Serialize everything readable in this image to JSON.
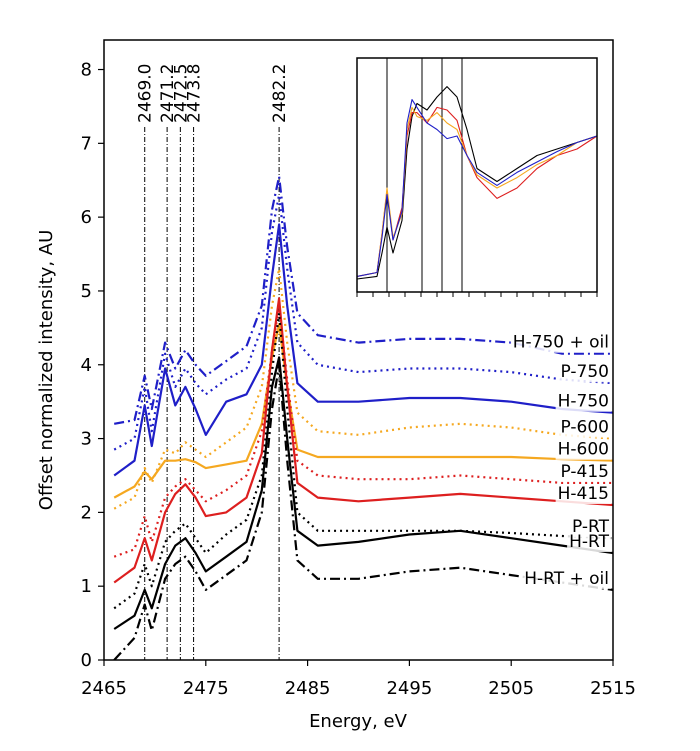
{
  "chart_data": {
    "type": "line",
    "xlabel": "Energy, eV",
    "ylabel": "Offset normalized intensity, AU",
    "xlim": [
      2465,
      2515
    ],
    "ylim": [
      0,
      8.4
    ],
    "xticks": [
      "2465",
      "2475",
      "2485",
      "2495",
      "2505",
      "2515"
    ],
    "yticks": [
      "0",
      "1",
      "2",
      "3",
      "4",
      "5",
      "6",
      "7",
      "8"
    ],
    "vlines": [
      {
        "x": 2469.0,
        "label": "2469.0"
      },
      {
        "x": 2471.2,
        "label": "2471.2"
      },
      {
        "x": 2472.5,
        "label": "2472.5"
      },
      {
        "x": 2473.8,
        "label": "2473.8"
      },
      {
        "x": 2482.2,
        "label": "2482.2"
      }
    ],
    "series": [
      {
        "name": "H-750 + oil",
        "color": "#1f1fc8",
        "dash": "dashdot",
        "x": [
          2466,
          2468,
          2469,
          2469.7,
          2471,
          2472,
          2473,
          2474,
          2475,
          2477,
          2479,
          2480.5,
          2481.5,
          2482.2,
          2483,
          2484,
          2486,
          2490,
          2495,
          2500,
          2505,
          2510,
          2515
        ],
        "y": [
          3.2,
          3.25,
          3.85,
          3.4,
          4.3,
          3.95,
          4.2,
          4.0,
          3.85,
          4.05,
          4.25,
          4.8,
          6.1,
          6.55,
          5.6,
          4.7,
          4.4,
          4.3,
          4.35,
          4.35,
          4.3,
          4.15,
          4.15
        ]
      },
      {
        "name": "P-750",
        "color": "#1f1fc8",
        "dash": "dotted",
        "x": [
          2466,
          2468,
          2469,
          2469.7,
          2471,
          2472,
          2473,
          2474,
          2475,
          2477,
          2479,
          2480.5,
          2481.5,
          2482.2,
          2483,
          2484,
          2486,
          2490,
          2495,
          2500,
          2505,
          2510,
          2515
        ],
        "y": [
          2.85,
          3.0,
          3.7,
          3.1,
          4.15,
          3.7,
          3.95,
          3.75,
          3.6,
          3.8,
          3.95,
          4.5,
          5.8,
          6.3,
          5.3,
          4.3,
          4.0,
          3.9,
          3.95,
          3.95,
          3.9,
          3.8,
          3.75
        ]
      },
      {
        "name": "H-750",
        "color": "#1f1fc8",
        "dash": "solid",
        "x": [
          2466,
          2468,
          2469,
          2469.7,
          2471,
          2472,
          2473,
          2474,
          2475,
          2477,
          2479,
          2480.5,
          2481.5,
          2482.2,
          2483,
          2484,
          2486,
          2490,
          2495,
          2500,
          2505,
          2510,
          2515
        ],
        "y": [
          2.5,
          2.7,
          3.45,
          2.9,
          3.95,
          3.45,
          3.7,
          3.4,
          3.05,
          3.5,
          3.6,
          4.0,
          5.2,
          5.9,
          4.8,
          3.75,
          3.5,
          3.5,
          3.55,
          3.55,
          3.5,
          3.4,
          3.35
        ]
      },
      {
        "name": "P-600",
        "color": "#f5a820",
        "dash": "dotted",
        "x": [
          2466,
          2468,
          2469,
          2469.7,
          2471,
          2472,
          2473,
          2474,
          2475,
          2477,
          2479,
          2480.5,
          2481.5,
          2482.2,
          2483,
          2484,
          2486,
          2490,
          2495,
          2500,
          2505,
          2510,
          2515
        ],
        "y": [
          2.05,
          2.2,
          2.6,
          2.4,
          2.85,
          2.8,
          2.95,
          2.85,
          2.75,
          2.95,
          3.15,
          3.7,
          4.8,
          5.3,
          4.3,
          3.35,
          3.1,
          3.05,
          3.15,
          3.2,
          3.15,
          3.05,
          3.0
        ]
      },
      {
        "name": "H-600",
        "color": "#f5a820",
        "dash": "solid",
        "x": [
          2466,
          2468,
          2469,
          2469.7,
          2471,
          2472,
          2473,
          2474,
          2475,
          2477,
          2479,
          2480.5,
          2481.5,
          2482.2,
          2483,
          2484,
          2486,
          2490,
          2495,
          2500,
          2505,
          2510,
          2515
        ],
        "y": [
          2.2,
          2.35,
          2.55,
          2.45,
          2.7,
          2.7,
          2.72,
          2.68,
          2.6,
          2.65,
          2.7,
          3.2,
          4.1,
          4.55,
          3.7,
          2.85,
          2.75,
          2.75,
          2.75,
          2.75,
          2.75,
          2.72,
          2.7
        ]
      },
      {
        "name": "P-415",
        "color": "#dd1f1f",
        "dash": "dotted",
        "x": [
          2466,
          2468,
          2469,
          2469.7,
          2471,
          2472,
          2473,
          2474,
          2475,
          2477,
          2479,
          2480.5,
          2481.5,
          2482.2,
          2483,
          2484,
          2486,
          2490,
          2495,
          2500,
          2505,
          2510,
          2515
        ],
        "y": [
          1.4,
          1.5,
          1.95,
          1.6,
          2.2,
          2.35,
          2.45,
          2.3,
          2.15,
          2.3,
          2.5,
          3.1,
          4.2,
          4.8,
          3.8,
          2.7,
          2.5,
          2.45,
          2.45,
          2.5,
          2.45,
          2.4,
          2.4
        ]
      },
      {
        "name": "H-415",
        "color": "#dd1f1f",
        "dash": "solid",
        "x": [
          2466,
          2468,
          2469,
          2469.7,
          2471,
          2472,
          2473,
          2474,
          2475,
          2477,
          2479,
          2480.5,
          2481.5,
          2482.2,
          2483,
          2484,
          2486,
          2490,
          2495,
          2500,
          2505,
          2510,
          2515
        ],
        "y": [
          1.05,
          1.25,
          1.65,
          1.35,
          2.0,
          2.25,
          2.38,
          2.2,
          1.95,
          2.0,
          2.2,
          2.8,
          4.2,
          4.9,
          3.7,
          2.4,
          2.2,
          2.15,
          2.2,
          2.25,
          2.2,
          2.15,
          2.1
        ]
      },
      {
        "name": "P-RT",
        "color": "#000000",
        "dash": "dotted",
        "x": [
          2466,
          2468,
          2469,
          2469.7,
          2471,
          2472,
          2473,
          2474,
          2475,
          2477,
          2479,
          2480.5,
          2481.5,
          2482.2,
          2483,
          2484,
          2486,
          2490,
          2495,
          2500,
          2505,
          2510,
          2515
        ],
        "y": [
          0.7,
          0.9,
          1.3,
          1.0,
          1.6,
          1.75,
          1.85,
          1.65,
          1.45,
          1.7,
          1.9,
          2.5,
          3.9,
          4.7,
          3.4,
          2.0,
          1.75,
          1.75,
          1.75,
          1.75,
          1.72,
          1.68,
          1.65
        ]
      },
      {
        "name": "H-RT",
        "color": "#000000",
        "dash": "solid",
        "x": [
          2466,
          2468,
          2469,
          2469.7,
          2471,
          2472,
          2473,
          2474,
          2475,
          2477,
          2479,
          2480.5,
          2481.5,
          2482.2,
          2483,
          2484,
          2486,
          2490,
          2495,
          2500,
          2505,
          2510,
          2515
        ],
        "y": [
          0.42,
          0.6,
          0.95,
          0.7,
          1.3,
          1.55,
          1.65,
          1.45,
          1.2,
          1.4,
          1.6,
          2.3,
          3.7,
          4.1,
          3.0,
          1.75,
          1.55,
          1.6,
          1.7,
          1.75,
          1.65,
          1.55,
          1.45
        ]
      },
      {
        "name": "H-RT + oil",
        "color": "#000000",
        "dash": "dashdot",
        "x": [
          2466,
          2468,
          2469,
          2469.7,
          2471,
          2472,
          2473,
          2474,
          2475,
          2477,
          2479,
          2480.5,
          2481.5,
          2482.2,
          2483,
          2484,
          2486,
          2490,
          2495,
          2500,
          2505,
          2510,
          2515
        ],
        "y": [
          0.0,
          0.3,
          0.75,
          0.4,
          1.1,
          1.3,
          1.4,
          1.2,
          0.95,
          1.15,
          1.35,
          2.0,
          3.4,
          4.0,
          2.7,
          1.35,
          1.1,
          1.1,
          1.2,
          1.25,
          1.15,
          1.05,
          0.95
        ]
      }
    ],
    "inset": {
      "description": "zoomed view of edge region",
      "xlim": [
        2466,
        2490
      ],
      "ylim": [
        0,
        1.8
      ],
      "vlines": [
        2469.0,
        2472.5,
        2474.5,
        2476.5
      ],
      "series": [
        {
          "name": "H-RT",
          "color": "#000000",
          "x": [
            2466,
            2468,
            2468.5,
            2469,
            2469.6,
            2470.5,
            2471,
            2471.5,
            2472,
            2473,
            2474,
            2475,
            2476,
            2477,
            2478,
            2480,
            2482,
            2484,
            2486,
            2488,
            2490
          ],
          "y": [
            0.1,
            0.12,
            0.3,
            0.5,
            0.3,
            0.55,
            1.1,
            1.35,
            1.45,
            1.4,
            1.5,
            1.58,
            1.5,
            1.25,
            0.95,
            0.85,
            0.95,
            1.05,
            1.1,
            1.15,
            1.2
          ]
        },
        {
          "name": "H-415",
          "color": "#dd1f1f",
          "x": [
            2466,
            2468,
            2468.5,
            2469,
            2469.6,
            2470.5,
            2471,
            2471.5,
            2472,
            2473,
            2474,
            2475,
            2476,
            2477,
            2478,
            2480,
            2482,
            2484,
            2486,
            2488,
            2490
          ],
          "y": [
            0.12,
            0.15,
            0.45,
            0.78,
            0.4,
            0.65,
            1.2,
            1.38,
            1.38,
            1.3,
            1.42,
            1.4,
            1.32,
            1.05,
            0.88,
            0.72,
            0.8,
            0.95,
            1.05,
            1.1,
            1.2
          ]
        },
        {
          "name": "H-600",
          "color": "#f5a820",
          "x": [
            2466,
            2468,
            2468.5,
            2469,
            2469.6,
            2470.5,
            2471,
            2471.5,
            2472,
            2473,
            2474,
            2475,
            2476,
            2477,
            2478,
            2480,
            2482,
            2484,
            2486,
            2488,
            2490
          ],
          "y": [
            0.12,
            0.15,
            0.45,
            0.8,
            0.42,
            0.6,
            1.25,
            1.42,
            1.35,
            1.32,
            1.38,
            1.3,
            1.25,
            1.05,
            0.9,
            0.8,
            0.88,
            0.98,
            1.05,
            1.15,
            1.2
          ]
        },
        {
          "name": "H-750",
          "color": "#1f1fc8",
          "x": [
            2466,
            2468,
            2468.5,
            2469,
            2469.6,
            2470.5,
            2471,
            2471.5,
            2472,
            2473,
            2474,
            2475,
            2476,
            2477,
            2478,
            2480,
            2482,
            2484,
            2486,
            2488,
            2490
          ],
          "y": [
            0.12,
            0.15,
            0.42,
            0.75,
            0.4,
            0.62,
            1.3,
            1.48,
            1.42,
            1.3,
            1.25,
            1.18,
            1.2,
            1.05,
            0.92,
            0.82,
            0.92,
            1.0,
            1.08,
            1.15,
            1.2
          ]
        }
      ]
    }
  }
}
